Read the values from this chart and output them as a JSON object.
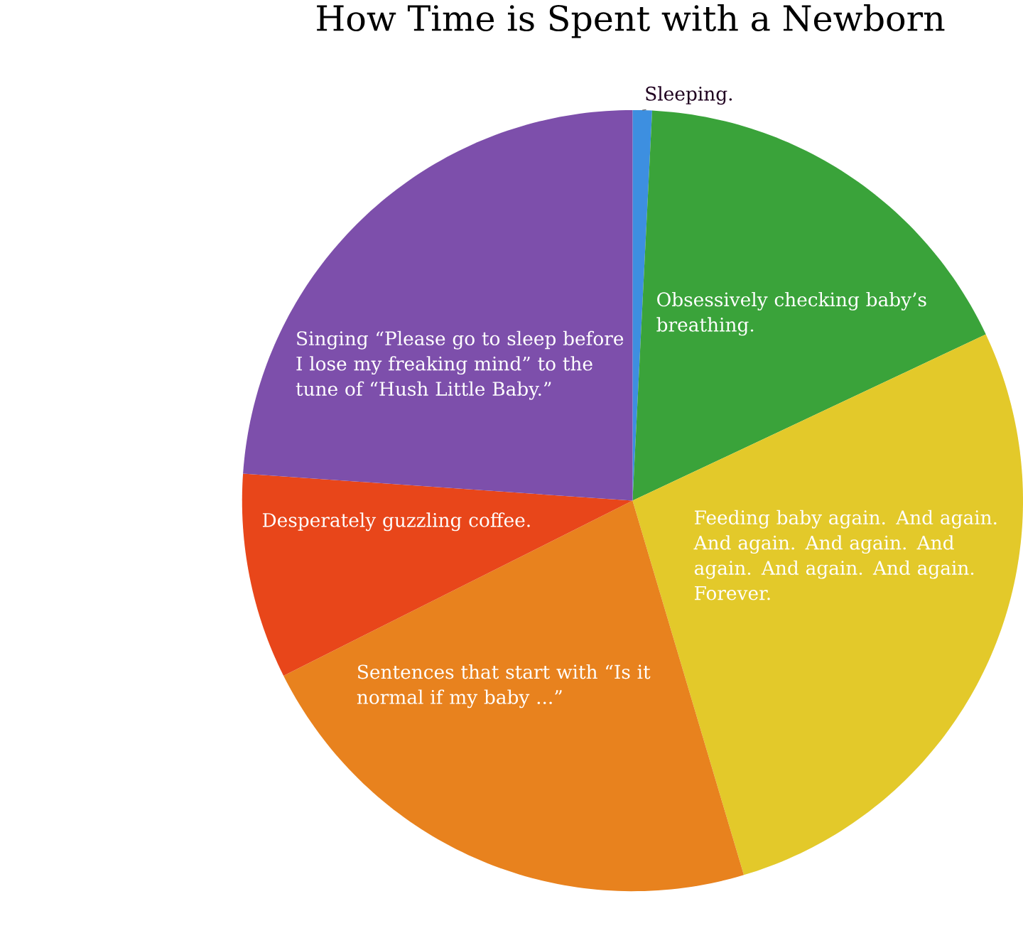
{
  "chart_data": {
    "type": "pie",
    "title": "How Time is Spent with a Newborn",
    "categories": [
      "Sleeping.",
      "Obsessively checking baby’s breathing.",
      "Feeding baby again. And again. And again. And again. And again. And again. And again. Forever.",
      "Sentences that start with “Is it normal if my baby ...”",
      "Desperately guzzling coffee.",
      "Singing “Please go to sleep before I lose my freaking mind” to the tune of “Hush Little Baby.”"
    ],
    "values": [
      0.8,
      17.2,
      27.4,
      22.2,
      8.5,
      23.9
    ],
    "colors": [
      "#3d8fe0",
      "#3aa33a",
      "#e3c92a",
      "#e8821e",
      "#e8461a",
      "#7d4fab"
    ]
  }
}
